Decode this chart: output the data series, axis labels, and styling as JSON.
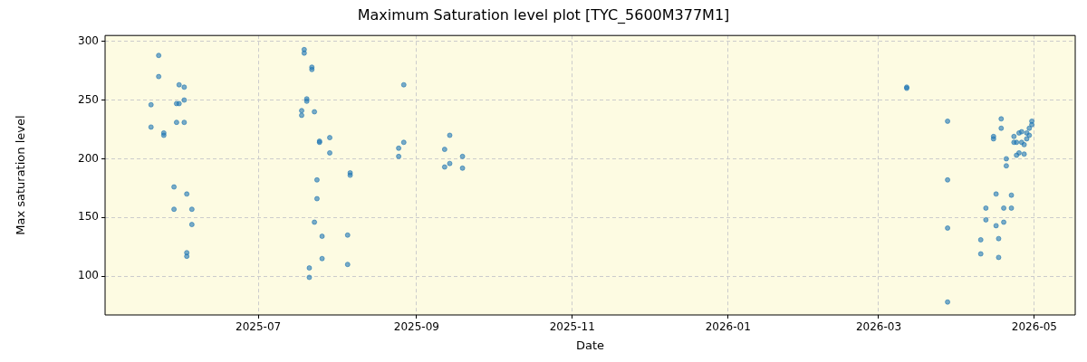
{
  "chart_data": {
    "type": "scatter",
    "title": "Maximum Saturation level plot [TYC_5600M377M1]",
    "xlabel": "Date",
    "ylabel": "Max saturation level",
    "x": [
      "2025-05-23",
      "2025-05-23",
      "2025-05-31",
      "2025-06-02",
      "2025-06-02",
      "2025-05-20",
      "2025-05-30",
      "2025-05-31",
      "2025-05-30",
      "2025-06-02",
      "2025-05-20",
      "2025-05-25",
      "2025-05-25",
      "2025-05-29",
      "2025-06-03",
      "2025-05-29",
      "2025-06-05",
      "2025-06-05",
      "2025-06-03",
      "2025-06-03",
      "2025-07-19",
      "2025-07-19",
      "2025-07-22",
      "2025-07-22",
      "2025-08-27",
      "2025-07-20",
      "2025-07-20",
      "2025-07-18",
      "2025-07-18",
      "2025-07-23",
      "2025-07-29",
      "2025-07-25",
      "2025-07-25",
      "2025-07-29",
      "2025-08-27",
      "2025-08-25",
      "2025-08-25",
      "2025-09-14",
      "2025-09-12",
      "2025-09-19",
      "2025-09-14",
      "2025-09-12",
      "2025-09-19",
      "2025-08-06",
      "2025-08-06",
      "2025-07-24",
      "2025-07-24",
      "2025-07-23",
      "2025-07-26",
      "2025-08-05",
      "2025-07-26",
      "2025-07-21",
      "2025-07-21",
      "2025-08-05",
      "2026-03-12",
      "2026-03-12",
      "2026-03-28",
      "2026-03-28",
      "2026-03-28",
      "2026-03-28",
      "2026-04-18",
      "2026-04-18",
      "2026-04-15",
      "2026-04-15",
      "2026-04-30",
      "2026-04-30",
      "2026-04-29",
      "2026-04-28",
      "2026-04-29",
      "2026-04-26",
      "2026-04-25",
      "2026-04-23",
      "2026-04-28",
      "2026-04-23",
      "2026-04-24",
      "2026-04-26",
      "2026-04-27",
      "2026-04-25",
      "2026-04-24",
      "2026-04-27",
      "2026-04-20",
      "2026-04-20",
      "2026-04-16",
      "2026-04-22",
      "2026-04-12",
      "2026-04-19",
      "2026-04-22",
      "2026-04-12",
      "2026-04-19",
      "2026-04-16",
      "2026-04-10",
      "2026-04-17",
      "2026-04-10",
      "2026-04-17"
    ],
    "series": [
      {
        "color": "#1f77b4",
        "values": [
          288,
          270,
          263,
          261,
          250,
          246,
          247,
          247,
          231,
          231,
          227,
          222,
          220,
          176,
          170,
          157,
          157,
          144,
          120,
          117,
          293,
          290,
          278,
          276,
          263,
          251,
          249,
          241,
          237,
          240,
          218,
          215,
          214,
          205,
          214,
          209,
          202,
          220,
          208,
          202,
          196,
          193,
          192,
          188,
          186,
          182,
          166,
          146,
          134,
          135,
          115,
          107,
          99,
          110,
          261,
          260,
          232,
          182,
          141,
          78,
          234,
          226,
          219,
          217,
          232,
          229,
          226,
          222,
          220,
          223,
          222,
          219,
          217,
          214,
          214,
          214,
          212,
          205,
          203,
          204,
          200,
          194,
          170,
          169,
          158,
          158,
          158,
          148,
          146,
          143,
          131,
          132,
          119,
          116
        ]
      }
    ],
    "xlim": [
      "2025-05-02",
      "2026-05-17"
    ],
    "ylim": [
      67,
      305
    ],
    "xticks": [
      "2025-07",
      "2025-09",
      "2025-11",
      "2026-01",
      "2026-03",
      "2026-05"
    ],
    "yticks": [
      100,
      150,
      200,
      250,
      300
    ],
    "grid": true,
    "legend": false,
    "marker": "circle"
  }
}
